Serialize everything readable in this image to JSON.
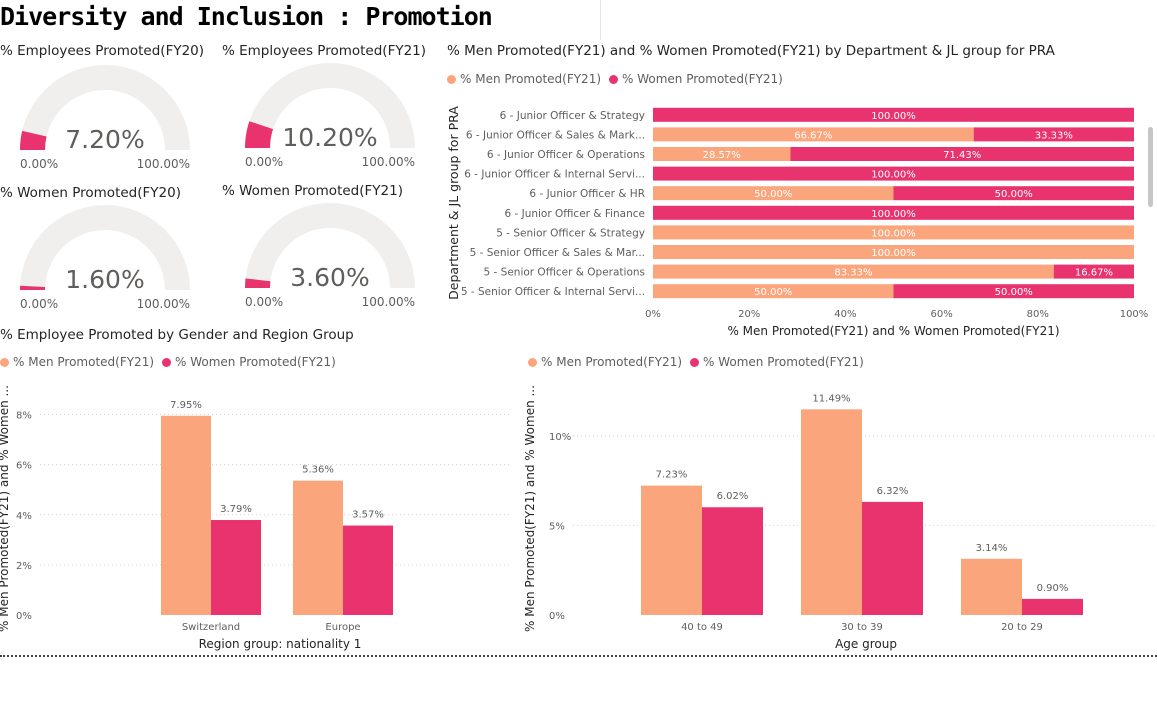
{
  "page_title": "Diversity and Inclusion : Promotion",
  "colors": {
    "men": "#FBA57D",
    "women": "#E8336F",
    "track": "#F0EFEE",
    "axis_text": "#605e5c"
  },
  "legend": {
    "men": "% Men Promoted(FY21)",
    "women": "% Women Promoted(FY21)"
  },
  "gauges": [
    {
      "title": "% Employees Promoted(FY20)",
      "value_label": "7.20%",
      "min": "0.00%",
      "max": "100.00%",
      "value": 7.2
    },
    {
      "title": "% Employees Promoted(FY21)",
      "value_label": "10.20%",
      "min": "0.00%",
      "max": "100.00%",
      "value": 10.2
    },
    {
      "title": "% Women Promoted(FY20)",
      "value_label": "1.60%",
      "min": "0.00%",
      "max": "100.00%",
      "value": 1.6
    },
    {
      "title": "% Women Promoted(FY21)",
      "value_label": "3.60%",
      "min": "0.00%",
      "max": "100.00%",
      "value": 3.6
    }
  ],
  "chart_data": [
    {
      "id": "dept",
      "type": "bar",
      "orientation": "horizontal",
      "stacked": "100%",
      "title": "% Men Promoted(FY21) and % Women Promoted(FY21) by Department & JL group for PRA",
      "xlabel": "% Men Promoted(FY21) and % Women Promoted(FY21)",
      "ylabel": "Department & JL group for PRA",
      "categories": [
        "6 - Junior Officer & Strategy",
        "6 - Junior Officer & Sales & Mark...",
        "6 - Junior Officer & Operations",
        "6 - Junior Officer & Internal Servi...",
        "6 - Junior Officer & HR",
        "6 - Junior Officer & Finance",
        "5 - Senior Officer & Strategy",
        "5 - Senior Officer & Sales & Mar...",
        "5 - Senior Officer & Operations",
        "5 - Senior Officer & Internal Servi..."
      ],
      "series": [
        {
          "name": "% Men Promoted(FY21)",
          "values": [
            0,
            66.67,
            28.57,
            0,
            50,
            0,
            100,
            100,
            83.33,
            50
          ]
        },
        {
          "name": "% Women Promoted(FY21)",
          "values": [
            100,
            33.33,
            71.43,
            100,
            50,
            100,
            0,
            0,
            16.67,
            50
          ]
        }
      ],
      "xticks": [
        "0%",
        "20%",
        "40%",
        "60%",
        "80%",
        "100%"
      ],
      "xlim": [
        0,
        100
      ]
    },
    {
      "id": "region",
      "type": "bar",
      "title": "% Employee Promoted by Gender and Region Group",
      "xlabel": "Region group: nationality 1",
      "ylabel": "% Men Promoted(FY21) and % Women ...",
      "categories": [
        "Switzerland",
        "Europe"
      ],
      "series": [
        {
          "name": "% Men Promoted(FY21)",
          "values": [
            7.95,
            5.36
          ]
        },
        {
          "name": "% Women Promoted(FY21)",
          "values": [
            3.79,
            3.57
          ]
        }
      ],
      "yticks": [
        "0%",
        "2%",
        "4%",
        "6%",
        "8%"
      ],
      "ylim": [
        0,
        8.5
      ],
      "grid": true
    },
    {
      "id": "age",
      "type": "bar",
      "title": "",
      "xlabel": "Age group",
      "ylabel": "% Men Promoted(FY21) and % Women ...",
      "categories": [
        "40 to 49",
        "30 to 39",
        "20 to 29"
      ],
      "series": [
        {
          "name": "% Men Promoted(FY21)",
          "values": [
            7.23,
            11.49,
            3.14
          ]
        },
        {
          "name": "% Women Promoted(FY21)",
          "values": [
            6.02,
            6.32,
            0.9
          ]
        }
      ],
      "yticks": [
        "0%",
        "5%",
        "10%"
      ],
      "ylim": [
        0,
        11.9
      ],
      "grid": true
    }
  ]
}
